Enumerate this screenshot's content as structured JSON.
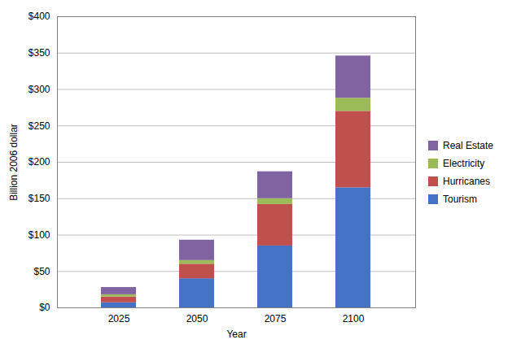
{
  "chart_data": {
    "type": "bar",
    "stacked": true,
    "categories": [
      "2025",
      "2050",
      "2075",
      "2100"
    ],
    "series": [
      {
        "name": "Tourism",
        "color": "#4472C4",
        "values": [
          7,
          40,
          85,
          165
        ]
      },
      {
        "name": "Hurricanes",
        "color": "#C0504D",
        "values": [
          8,
          20,
          57,
          105
        ]
      },
      {
        "name": "Electricity",
        "color": "#9BBB59",
        "values": [
          3,
          5,
          8,
          18
        ]
      },
      {
        "name": "Real Estate",
        "color": "#8064A2",
        "values": [
          10,
          28,
          37,
          58
        ]
      }
    ],
    "xlabel": "Year",
    "ylabel": "Billion 2006 dollar",
    "ylim": [
      0,
      400
    ],
    "yticks": [
      {
        "value": 0,
        "label": "$0"
      },
      {
        "value": 50,
        "label": "$50"
      },
      {
        "value": 100,
        "label": "$100"
      },
      {
        "value": 150,
        "label": "$150"
      },
      {
        "value": 200,
        "label": "$200"
      },
      {
        "value": 250,
        "label": "$250"
      },
      {
        "value": 300,
        "label": "$300"
      },
      {
        "value": 350,
        "label": "$350"
      },
      {
        "value": 400,
        "label": "$400"
      }
    ],
    "grid": true,
    "legend": "right"
  }
}
